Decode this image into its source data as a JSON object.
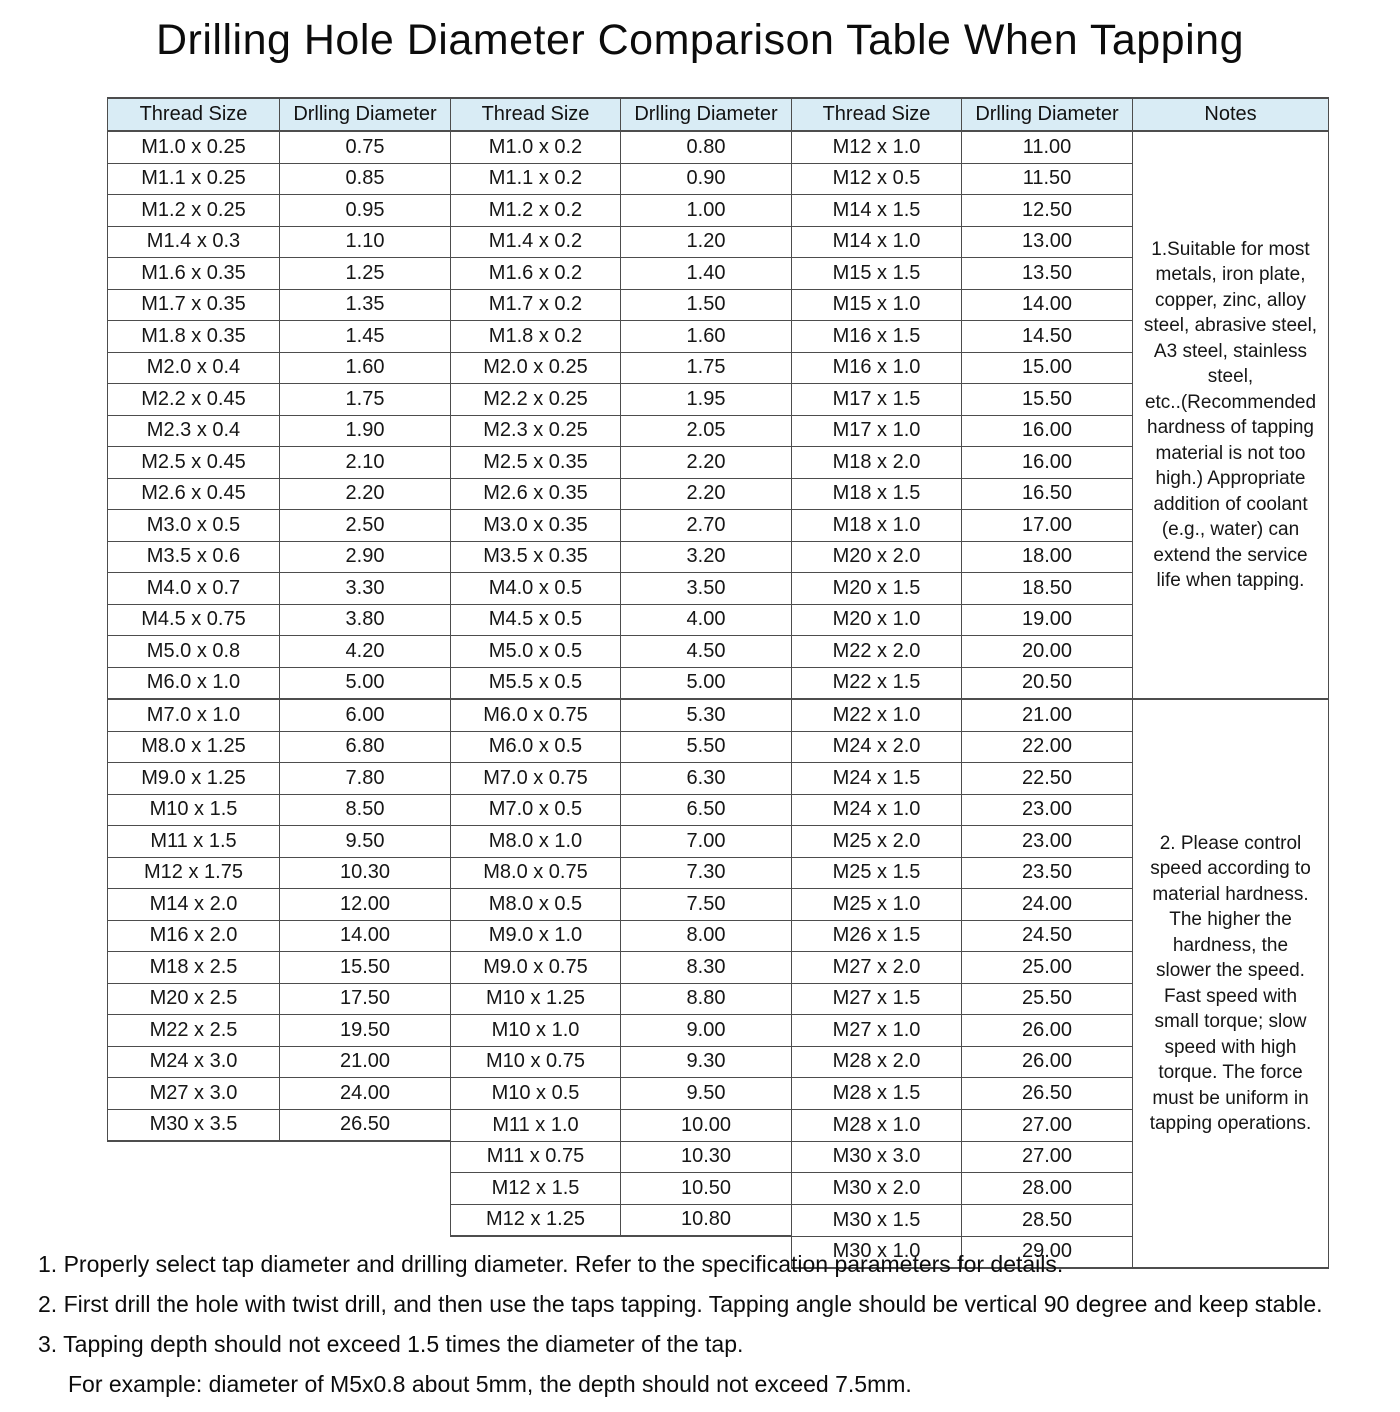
{
  "title": "Drilling Hole Diameter Comparison Table When Tapping",
  "colors": {
    "header_background": "#d9ecf5",
    "border": "#4d4d4d",
    "text": "#111111"
  },
  "table": {
    "headers": [
      "Thread Size",
      "Drlling Diameter",
      "Thread Size",
      "Drlling Diameter",
      "Thread Size",
      "Drlling Diameter",
      "Notes"
    ],
    "group1": [
      [
        "M1.0 x 0.25",
        "0.75"
      ],
      [
        "M1.1 x 0.25",
        "0.85"
      ],
      [
        "M1.2 x 0.25",
        "0.95"
      ],
      [
        "M1.4 x 0.3",
        "1.10"
      ],
      [
        "M1.6 x 0.35",
        "1.25"
      ],
      [
        "M1.7 x 0.35",
        "1.35"
      ],
      [
        "M1.8 x 0.35",
        "1.45"
      ],
      [
        "M2.0 x 0.4",
        "1.60"
      ],
      [
        "M2.2 x 0.45",
        "1.75"
      ],
      [
        "M2.3 x 0.4",
        "1.90"
      ],
      [
        "M2.5 x 0.45",
        "2.10"
      ],
      [
        "M2.6 x 0.45",
        "2.20"
      ],
      [
        "M3.0 x 0.5",
        "2.50"
      ],
      [
        "M3.5 x 0.6",
        "2.90"
      ],
      [
        "M4.0 x 0.7",
        "3.30"
      ],
      [
        "M4.5 x 0.75",
        "3.80"
      ],
      [
        "M5.0 x 0.8",
        "4.20"
      ],
      [
        "M6.0 x 1.0",
        "5.00"
      ],
      [
        "M7.0 x 1.0",
        "6.00"
      ],
      [
        "M8.0 x 1.25",
        "6.80"
      ],
      [
        "M9.0 x 1.25",
        "7.80"
      ],
      [
        "M10 x 1.5",
        "8.50"
      ],
      [
        "M11 x 1.5",
        "9.50"
      ],
      [
        "M12 x 1.75",
        "10.30"
      ],
      [
        "M14 x 2.0",
        "12.00"
      ],
      [
        "M16 x 2.0",
        "14.00"
      ],
      [
        "M18 x 2.5",
        "15.50"
      ],
      [
        "M20 x 2.5",
        "17.50"
      ],
      [
        "M22 x 2.5",
        "19.50"
      ],
      [
        "M24 x 3.0",
        "21.00"
      ],
      [
        "M27 x 3.0",
        "24.00"
      ],
      [
        "M30 x 3.5",
        "26.50"
      ]
    ],
    "group2": [
      [
        "M1.0 x 0.2",
        "0.80"
      ],
      [
        "M1.1 x 0.2",
        "0.90"
      ],
      [
        "M1.2 x 0.2",
        "1.00"
      ],
      [
        "M1.4 x 0.2",
        "1.20"
      ],
      [
        "M1.6 x 0.2",
        "1.40"
      ],
      [
        "M1.7 x 0.2",
        "1.50"
      ],
      [
        "M1.8 x 0.2",
        "1.60"
      ],
      [
        "M2.0 x 0.25",
        "1.75"
      ],
      [
        "M2.2 x 0.25",
        "1.95"
      ],
      [
        "M2.3 x 0.25",
        "2.05"
      ],
      [
        "M2.5 x 0.35",
        "2.20"
      ],
      [
        "M2.6 x 0.35",
        "2.20"
      ],
      [
        "M3.0 x 0.35",
        "2.70"
      ],
      [
        "M3.5 x 0.35",
        "3.20"
      ],
      [
        "M4.0 x 0.5",
        "3.50"
      ],
      [
        "M4.5 x 0.5",
        "4.00"
      ],
      [
        "M5.0 x 0.5",
        "4.50"
      ],
      [
        "M5.5 x 0.5",
        "5.00"
      ],
      [
        "M6.0 x 0.75",
        "5.30"
      ],
      [
        "M6.0 x 0.5",
        "5.50"
      ],
      [
        "M7.0 x 0.75",
        "6.30"
      ],
      [
        "M7.0 x 0.5",
        "6.50"
      ],
      [
        "M8.0 x 1.0",
        "7.00"
      ],
      [
        "M8.0 x 0.75",
        "7.30"
      ],
      [
        "M8.0 x 0.5",
        "7.50"
      ],
      [
        "M9.0 x 1.0",
        "8.00"
      ],
      [
        "M9.0 x 0.75",
        "8.30"
      ],
      [
        "M10 x 1.25",
        "8.80"
      ],
      [
        "M10 x 1.0",
        "9.00"
      ],
      [
        "M10 x 0.75",
        "9.30"
      ],
      [
        "M10 x 0.5",
        "9.50"
      ],
      [
        "M11 x 1.0",
        "10.00"
      ],
      [
        "M11 x 0.75",
        "10.30"
      ],
      [
        "M12 x 1.5",
        "10.50"
      ],
      [
        "M12 x 1.25",
        "10.80"
      ]
    ],
    "group3": [
      [
        "M12 x 1.0",
        "11.00"
      ],
      [
        "M12 x 0.5",
        "11.50"
      ],
      [
        "M14 x 1.5",
        "12.50"
      ],
      [
        "M14 x 1.0",
        "13.00"
      ],
      [
        "M15 x 1.5",
        "13.50"
      ],
      [
        "M15 x 1.0",
        "14.00"
      ],
      [
        "M16 x 1.5",
        "14.50"
      ],
      [
        "M16 x 1.0",
        "15.00"
      ],
      [
        "M17 x 1.5",
        "15.50"
      ],
      [
        "M17 x 1.0",
        "16.00"
      ],
      [
        "M18 x 2.0",
        "16.00"
      ],
      [
        "M18 x 1.5",
        "16.50"
      ],
      [
        "M18 x 1.0",
        "17.00"
      ],
      [
        "M20 x 2.0",
        "18.00"
      ],
      [
        "M20 x 1.5",
        "18.50"
      ],
      [
        "M20 x 1.0",
        "19.00"
      ],
      [
        "M22 x 2.0",
        "20.00"
      ],
      [
        "M22 x 1.5",
        "20.50"
      ],
      [
        "M22 x 1.0",
        "21.00"
      ],
      [
        "M24 x 2.0",
        "22.00"
      ],
      [
        "M24 x 1.5",
        "22.50"
      ],
      [
        "M24 x 1.0",
        "23.00"
      ],
      [
        "M25 x 2.0",
        "23.00"
      ],
      [
        "M25 x 1.5",
        "23.50"
      ],
      [
        "M25 x 1.0",
        "24.00"
      ],
      [
        "M26 x 1.5",
        "24.50"
      ],
      [
        "M27 x 2.0",
        "25.00"
      ],
      [
        "M27 x 1.5",
        "25.50"
      ],
      [
        "M27 x 1.0",
        "26.00"
      ],
      [
        "M28 x 2.0",
        "26.00"
      ],
      [
        "M28 x 1.5",
        "26.50"
      ],
      [
        "M28 x 1.0",
        "27.00"
      ],
      [
        "M30 x 3.0",
        "27.00"
      ],
      [
        "M30 x 2.0",
        "28.00"
      ],
      [
        "M30 x 1.5",
        "28.50"
      ],
      [
        "M30 x 1.0",
        "29.00"
      ]
    ],
    "notes": [
      "1.Suitable for most\nmetals, iron plate,\ncopper, zinc, alloy\nsteel, abrasive steel,\nA3 steel, stainless\nsteel,\netc..(Recommended\nhardness of tapping\nmaterial is not too\nhigh.) Appropriate\naddition of coolant\n(e.g., water) can\nextend the service\nlife when tapping.",
      "2. Please control\nspeed according to\nmaterial hardness.\nThe higher the\nhardness, the\nslower the speed.\nFast speed with\nsmall torque; slow\nspeed with high\ntorque. The force\nmust be uniform in\ntapping operations."
    ]
  },
  "footnotes": [
    {
      "text": "1. Properly select tap diameter and drilling diameter. Refer to the specification parameters for details.",
      "indent": false
    },
    {
      "text": "2. First drill the hole with twist drill, and then use the taps tapping. Tapping angle should be vertical 90 degree and keep stable.",
      "indent": false
    },
    {
      "text": "3. Tapping depth should not exceed 1.5 times the diameter of the tap.",
      "indent": false
    },
    {
      "text": "For example: diameter of M5x0.8 about 5mm, the depth should not exceed 7.5mm.",
      "indent": true
    }
  ]
}
